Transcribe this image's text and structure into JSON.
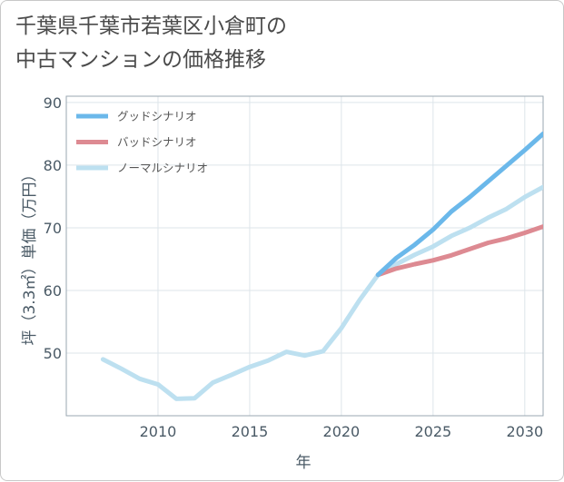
{
  "title_line1": "千葉県千葉市若葉区小倉町の",
  "title_line2": "中古マンションの価格推移",
  "chart_data": {
    "type": "line",
    "title": "千葉県千葉市若葉区小倉町の中古マンションの価格推移",
    "xlabel": "年",
    "ylabel": "坪（3.3㎡）単価（万円）",
    "xlim": [
      2005,
      2031
    ],
    "ylim": [
      40,
      91
    ],
    "xticks": [
      2010,
      2015,
      2020,
      2025,
      2030
    ],
    "yticks": [
      50,
      60,
      70,
      80,
      90
    ],
    "grid": true,
    "legend_position": "top-left",
    "series": [
      {
        "name": "グッドシナリオ",
        "color": "#6bb8ea",
        "x": [
          2022,
          2023,
          2024,
          2025,
          2026,
          2027,
          2028,
          2029,
          2030,
          2031
        ],
        "y": [
          62.5,
          65.2,
          67.3,
          69.7,
          72.6,
          74.9,
          77.4,
          79.9,
          82.4,
          85.0
        ]
      },
      {
        "name": "バッドシナリオ",
        "color": "#dd8a92",
        "x": [
          2022,
          2023,
          2024,
          2025,
          2026,
          2027,
          2028,
          2029,
          2030,
          2031
        ],
        "y": [
          62.5,
          63.5,
          64.2,
          64.8,
          65.6,
          66.6,
          67.6,
          68.3,
          69.2,
          70.2
        ]
      },
      {
        "name": "ノーマルシナリオ",
        "color": "#bde0f0",
        "x": [
          2007,
          2008,
          2009,
          2010,
          2011,
          2012,
          2013,
          2014,
          2015,
          2016,
          2017,
          2018,
          2019,
          2020,
          2021,
          2022,
          2023,
          2024,
          2025,
          2026,
          2027,
          2028,
          2029,
          2030,
          2031
        ],
        "y": [
          49.0,
          47.5,
          45.9,
          45.0,
          42.7,
          42.8,
          45.3,
          46.5,
          47.8,
          48.8,
          50.2,
          49.6,
          50.3,
          54.0,
          58.5,
          62.5,
          64.2,
          65.7,
          67.0,
          68.7,
          70.0,
          71.6,
          73.0,
          74.9,
          76.5
        ]
      }
    ]
  }
}
